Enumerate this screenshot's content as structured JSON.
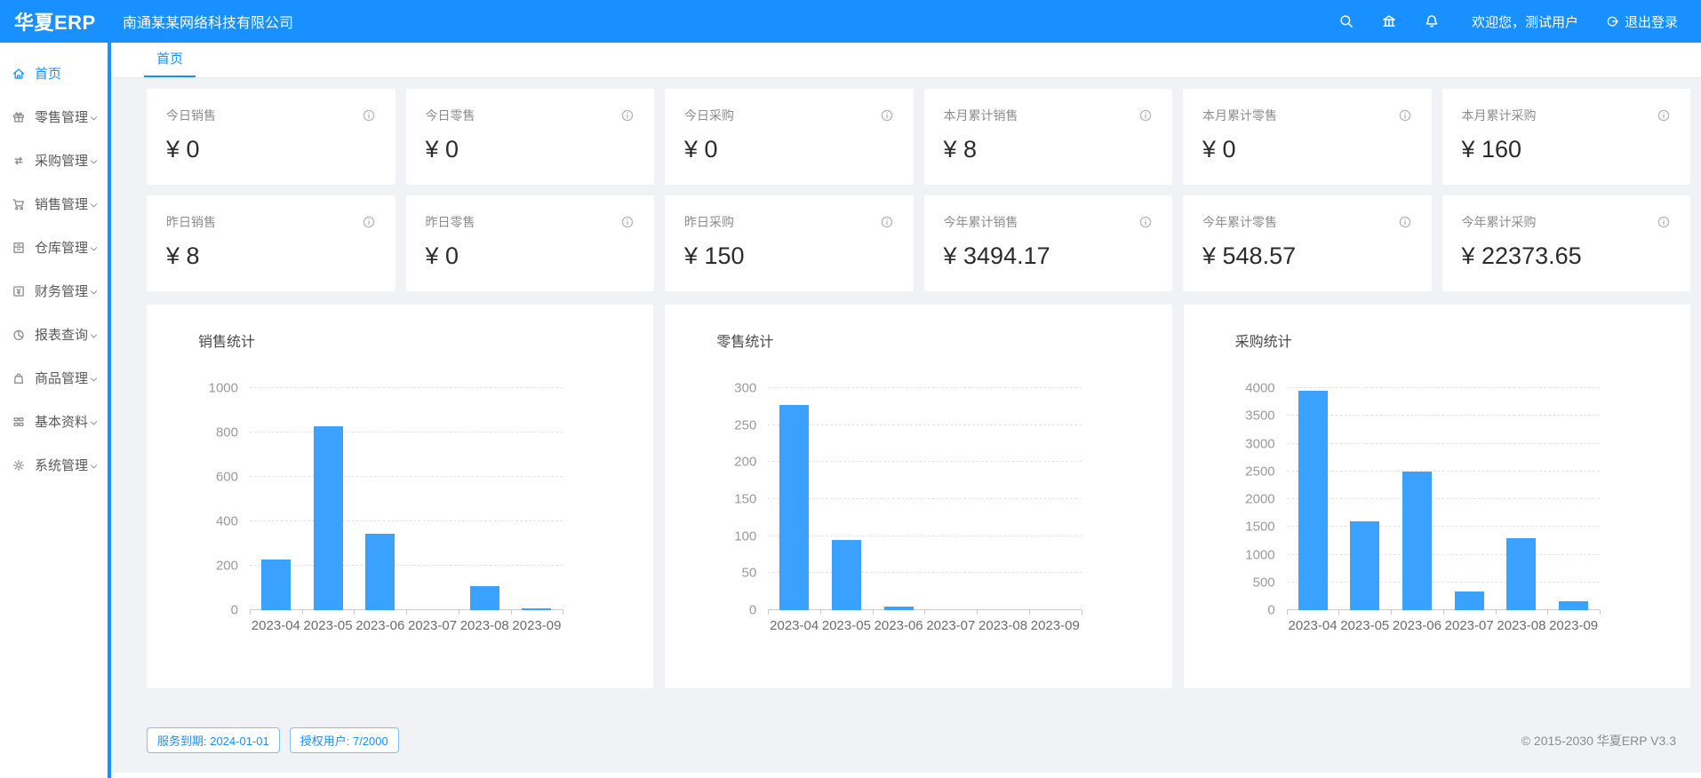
{
  "colors": {
    "primary": "#1890ff",
    "bar_blue": "#3aa1ff"
  },
  "header": {
    "logo": "华夏ERP",
    "company": "南通某某网络科技有限公司",
    "icons": [
      "search-icon",
      "bank-icon",
      "bell-icon"
    ],
    "welcome": "欢迎您，测试用户",
    "logout_label": "退出登录"
  },
  "tabs": [
    {
      "label": "首页",
      "active": true
    }
  ],
  "sidebar": {
    "items": [
      {
        "key": "home",
        "label": "首页",
        "icon": "home-icon",
        "active": true,
        "expandable": false
      },
      {
        "key": "retail",
        "label": "零售管理",
        "icon": "gift-icon",
        "active": false,
        "expandable": true
      },
      {
        "key": "purchase",
        "label": "采购管理",
        "icon": "sync-icon",
        "active": false,
        "expandable": true
      },
      {
        "key": "sales",
        "label": "销售管理",
        "icon": "cart-icon",
        "active": false,
        "expandable": true
      },
      {
        "key": "warehouse",
        "label": "仓库管理",
        "icon": "archive-icon",
        "active": false,
        "expandable": true
      },
      {
        "key": "finance",
        "label": "财务管理",
        "icon": "money-icon",
        "active": false,
        "expandable": true
      },
      {
        "key": "reports",
        "label": "报表查询",
        "icon": "pie-chart-icon",
        "active": false,
        "expandable": true
      },
      {
        "key": "products",
        "label": "商品管理",
        "icon": "bag-icon",
        "active": false,
        "expandable": true
      },
      {
        "key": "basic",
        "label": "基本资料",
        "icon": "grid-icon",
        "active": false,
        "expandable": true
      },
      {
        "key": "system",
        "label": "系统管理",
        "icon": "gear-icon",
        "active": false,
        "expandable": true
      }
    ]
  },
  "cards": [
    {
      "title": "今日销售",
      "value": "¥ 0"
    },
    {
      "title": "今日零售",
      "value": "¥ 0"
    },
    {
      "title": "今日采购",
      "value": "¥ 0"
    },
    {
      "title": "本月累计销售",
      "value": "¥ 8"
    },
    {
      "title": "本月累计零售",
      "value": "¥ 0"
    },
    {
      "title": "本月累计采购",
      "value": "¥ 160"
    },
    {
      "title": "昨日销售",
      "value": "¥ 8"
    },
    {
      "title": "昨日零售",
      "value": "¥ 0"
    },
    {
      "title": "昨日采购",
      "value": "¥ 150"
    },
    {
      "title": "今年累计销售",
      "value": "¥ 3494.17"
    },
    {
      "title": "今年累计零售",
      "value": "¥ 548.57"
    },
    {
      "title": "今年累计采购",
      "value": "¥ 22373.65"
    }
  ],
  "chart_data": [
    {
      "type": "bar",
      "key": "sales",
      "title": "销售统计",
      "categories": [
        "2023-04",
        "2023-05",
        "2023-06",
        "2023-07",
        "2023-08",
        "2023-09"
      ],
      "values": [
        230,
        830,
        345,
        0,
        110,
        8
      ],
      "ylim": [
        0,
        1000
      ],
      "ytick_step": 200,
      "grid": true,
      "legend": false,
      "bar_color": "#3aa1ff"
    },
    {
      "type": "bar",
      "key": "retail",
      "title": "零售统计",
      "categories": [
        "2023-04",
        "2023-05",
        "2023-06",
        "2023-07",
        "2023-08",
        "2023-09"
      ],
      "values": [
        277,
        95,
        5,
        0,
        0,
        0
      ],
      "ylim": [
        0,
        300
      ],
      "ytick_step": 50,
      "grid": true,
      "legend": false,
      "bar_color": "#3aa1ff"
    },
    {
      "type": "bar",
      "key": "purchase",
      "title": "采购统计",
      "categories": [
        "2023-04",
        "2023-05",
        "2023-06",
        "2023-07",
        "2023-08",
        "2023-09"
      ],
      "values": [
        3950,
        1600,
        2500,
        330,
        1300,
        160
      ],
      "ylim": [
        0,
        4000
      ],
      "ytick_step": 500,
      "grid": true,
      "legend": false,
      "bar_color": "#3aa1ff"
    }
  ],
  "footer": {
    "service_expiry": "服务到期: 2024-01-01",
    "licensed_users": "授权用户: 7/2000",
    "copyright": "© 2015-2030 华夏ERP V3.3"
  }
}
